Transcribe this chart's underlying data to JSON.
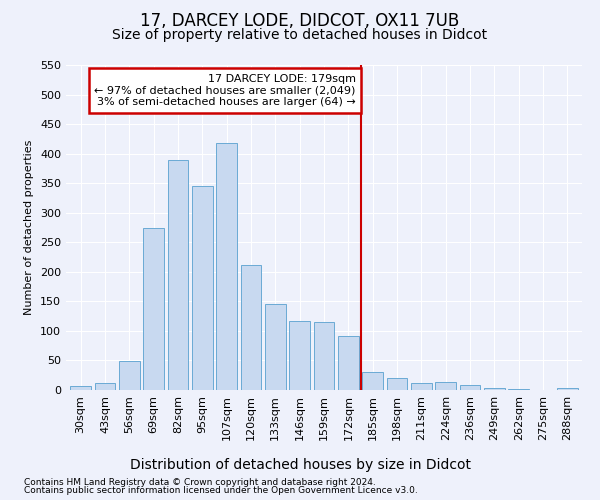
{
  "title": "17, DARCEY LODE, DIDCOT, OX11 7UB",
  "subtitle": "Size of property relative to detached houses in Didcot",
  "xlabel": "Distribution of detached houses by size in Didcot",
  "ylabel": "Number of detached properties",
  "categories": [
    "30sqm",
    "43sqm",
    "56sqm",
    "69sqm",
    "82sqm",
    "95sqm",
    "107sqm",
    "120sqm",
    "133sqm",
    "146sqm",
    "159sqm",
    "172sqm",
    "185sqm",
    "198sqm",
    "211sqm",
    "224sqm",
    "236sqm",
    "249sqm",
    "262sqm",
    "275sqm",
    "288sqm"
  ],
  "values": [
    6,
    12,
    49,
    274,
    389,
    345,
    418,
    212,
    145,
    116,
    115,
    92,
    31,
    20,
    12,
    13,
    8,
    4,
    1,
    0,
    4
  ],
  "bar_color": "#c8d9f0",
  "bar_edge_color": "#6aaad4",
  "annotation_title": "17 DARCEY LODE: 179sqm",
  "annotation_line1": "← 97% of detached houses are smaller (2,049)",
  "annotation_line2": "3% of semi-detached houses are larger (64) →",
  "annotation_box_color": "#cc0000",
  "ylim": [
    0,
    550
  ],
  "yticks": [
    0,
    50,
    100,
    150,
    200,
    250,
    300,
    350,
    400,
    450,
    500,
    550
  ],
  "footnote1": "Contains HM Land Registry data © Crown copyright and database right 2024.",
  "footnote2": "Contains public sector information licensed under the Open Government Licence v3.0.",
  "bg_color": "#eef1fb",
  "grid_color": "#ffffff",
  "title_fontsize": 12,
  "subtitle_fontsize": 10,
  "xlabel_fontsize": 10,
  "ylabel_fontsize": 8,
  "tick_fontsize": 8,
  "footnote_fontsize": 6.5
}
